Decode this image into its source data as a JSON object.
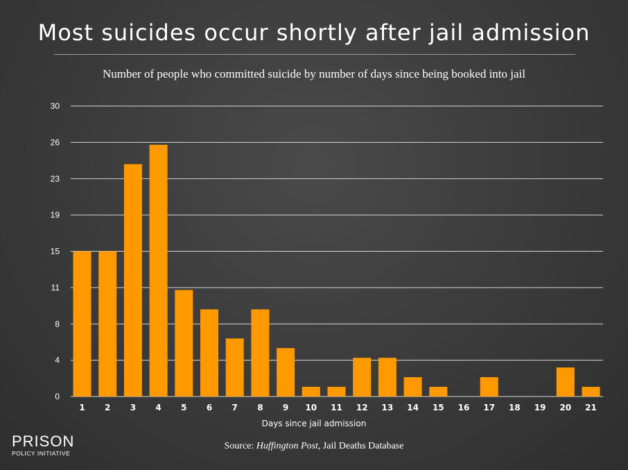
{
  "title": "Most suicides occur shortly after jail admission",
  "subtitle": "Number of people who committed suicide by number of days since being booked into jail",
  "logo": {
    "line1": "PRISON",
    "line2": "POLICY INITIATIVE"
  },
  "source": {
    "prefix": "Source: ",
    "publication": "Huffington Post",
    "suffix": ", Jail Deaths Database"
  },
  "colors": {
    "bar": "#ff9900",
    "grid": "#d8d8d8",
    "text": "#ffffff"
  },
  "chart_data": {
    "type": "bar",
    "title": "Most suicides occur shortly after jail admission",
    "xlabel": "Days since jail admission",
    "ylabel": "",
    "categories": [
      "1",
      "2",
      "3",
      "4",
      "5",
      "6",
      "7",
      "8",
      "9",
      "10",
      "11",
      "12",
      "13",
      "14",
      "15",
      "16",
      "17",
      "18",
      "19",
      "20",
      "21"
    ],
    "values": [
      15,
      15,
      24,
      26,
      11,
      9,
      6,
      9,
      5,
      1,
      1,
      4,
      4,
      2,
      1,
      0,
      2,
      0,
      0,
      3,
      1
    ],
    "yticks": [
      0,
      4,
      8,
      11,
      15,
      19,
      23,
      26,
      30
    ],
    "ylim": [
      0,
      30
    ],
    "grid": true
  }
}
